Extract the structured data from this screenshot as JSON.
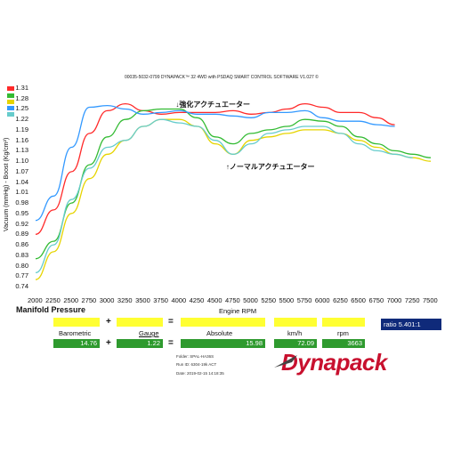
{
  "header": {
    "text": "00035-5032-0799 DYNAPACK™ 32 4WD with PSDAQ SMART CONTROL SOFTWARE V1.027 ©"
  },
  "chart_data": {
    "type": "line",
    "title": "",
    "xlabel": "Engine RPM",
    "ylabel": "Vacuum (mmHg) - Boost (Kg/cm²)",
    "xlim": [
      2000,
      7500
    ],
    "ylim": [
      0.74,
      1.31
    ],
    "x_ticks": [
      "2000",
      "2250",
      "2500",
      "2750",
      "3000",
      "3250",
      "3500",
      "3750",
      "4000",
      "4250",
      "4500",
      "4750",
      "5000",
      "5250",
      "5500",
      "5750",
      "6000",
      "6250",
      "6500",
      "6750",
      "7000",
      "7250",
      "7500"
    ],
    "y_ticks": [
      "1.31",
      "1.28",
      "1.25",
      "1.22",
      "1.19",
      "1.16",
      "1.13",
      "1.10",
      "1.07",
      "1.04",
      "1.01",
      "0.98",
      "0.95",
      "0.92",
      "0.89",
      "0.86",
      "0.83",
      "0.80",
      "0.77",
      "0.74"
    ],
    "grid": false,
    "legend": "top-left swatches",
    "series": [
      {
        "color": "#ff2a2a",
        "x": [
          2000,
          2250,
          2500,
          2750,
          3000,
          3250,
          3500,
          3750,
          4000,
          4250,
          4500,
          4750,
          5000,
          5250,
          5500,
          5750,
          6000,
          6250,
          6500,
          6750,
          7000
        ],
        "y": [
          0.89,
          0.96,
          1.07,
          1.18,
          1.245,
          1.265,
          1.245,
          1.235,
          1.24,
          1.24,
          1.24,
          1.245,
          1.235,
          1.24,
          1.25,
          1.265,
          1.255,
          1.24,
          1.24,
          1.225,
          1.205
        ]
      },
      {
        "color": "#33bb33",
        "x": [
          2000,
          2250,
          2500,
          2750,
          3000,
          3250,
          3500,
          3750,
          4000,
          4250,
          4500,
          4750,
          5000,
          5250,
          5500,
          5750,
          6000,
          6250,
          6500,
          6750,
          7000,
          7250,
          7500
        ],
        "y": [
          0.82,
          0.87,
          0.98,
          1.09,
          1.17,
          1.22,
          1.245,
          1.25,
          1.25,
          1.225,
          1.17,
          1.15,
          1.18,
          1.19,
          1.2,
          1.22,
          1.215,
          1.2,
          1.17,
          1.15,
          1.13,
          1.12,
          1.11
        ]
      },
      {
        "color": "#e6d400",
        "x": [
          2000,
          2250,
          2500,
          2750,
          3000,
          3250,
          3500,
          3750,
          4000,
          4250,
          4500,
          4750,
          5000,
          5250,
          5500,
          5750,
          6000,
          6250,
          6500,
          6750,
          7000,
          7250,
          7500
        ],
        "y": [
          0.76,
          0.84,
          0.95,
          1.05,
          1.12,
          1.16,
          1.2,
          1.22,
          1.22,
          1.2,
          1.15,
          1.12,
          1.16,
          1.17,
          1.18,
          1.19,
          1.19,
          1.18,
          1.16,
          1.14,
          1.12,
          1.11,
          1.1
        ]
      },
      {
        "color": "#3399ff",
        "x": [
          2000,
          2250,
          2500,
          2750,
          3000,
          3250,
          3500,
          3750,
          4000,
          4250,
          4500,
          4750,
          5000,
          5250,
          5500,
          5750,
          6000,
          6250,
          6500,
          6750,
          7000
        ],
        "y": [
          0.93,
          1.0,
          1.14,
          1.255,
          1.26,
          1.25,
          1.235,
          1.24,
          1.245,
          1.235,
          1.235,
          1.23,
          1.225,
          1.24,
          1.24,
          1.245,
          1.225,
          1.215,
          1.215,
          1.205,
          1.2
        ]
      },
      {
        "color": "#66cccc",
        "x": [
          2000,
          2250,
          2500,
          2750,
          3000,
          3250,
          3500,
          3750,
          4000,
          4250,
          4500,
          4750,
          5000,
          5250,
          5500,
          5750,
          6000,
          6250,
          6500,
          6750,
          7000,
          7250
        ],
        "y": [
          0.78,
          0.86,
          0.99,
          1.08,
          1.14,
          1.16,
          1.2,
          1.22,
          1.21,
          1.2,
          1.16,
          1.12,
          1.15,
          1.18,
          1.19,
          1.2,
          1.2,
          1.18,
          1.15,
          1.13,
          1.12,
          1.11
        ]
      }
    ],
    "annotations": [
      {
        "text": "↓強化アクチュエーター",
        "x": 3950,
        "y": 1.265
      },
      {
        "text": "↑ノーマルアクチュエーター",
        "x": 4650,
        "y": 1.085
      }
    ]
  },
  "panel": {
    "manifold_title": "Manifold Pressure",
    "x_axis_label": "Engine RPM",
    "barometric_label": "Barometric",
    "barometric_value": "14.76",
    "plus1": "+",
    "gauge_label": "Gauge",
    "gauge_value": "1.22",
    "equals": "=",
    "absolute_label": "Absolute",
    "absolute_value": "15.98",
    "kmh_label": "km/h",
    "kmh_value": "72.09",
    "rpm_label": "rpm",
    "rpm_value": "3663",
    "plus2": "+",
    "equals2": "=",
    "ratio_label": "ratio",
    "ratio_value": "5.401:1"
  },
  "meta": {
    "folder": "Folder:  SPAL-HA36S",
    "run_id": "Run ID:  6304-19k ACT",
    "date": "Date:    2019-02-15 14:18:35"
  },
  "logo": {
    "text": "Dynapack"
  },
  "colors": {
    "yellow_box": "#ffff33",
    "green_box": "#2e9a2e",
    "ratio_box": "#0f2a7a",
    "logo": "#c8102e"
  }
}
